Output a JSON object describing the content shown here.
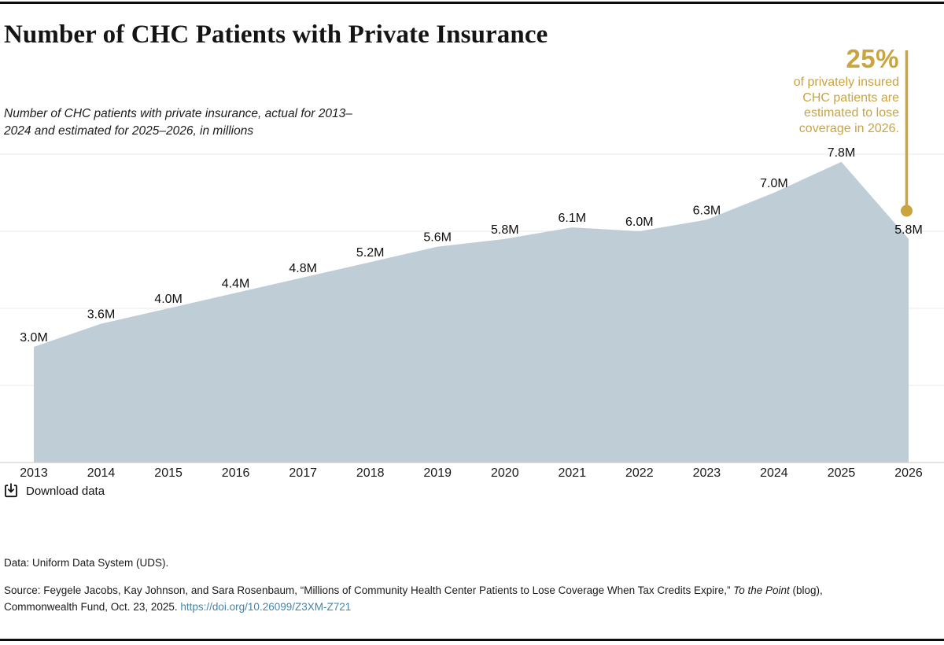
{
  "page": {
    "title": "Number of CHC Patients with Private Insurance",
    "subtitle": "Number of CHC patients with private insurance, actual for 2013–2024 and estimated for 2025–2026, in millions"
  },
  "annotation": {
    "headline": "25%",
    "body": "of privately insured CHC patients are estimated to lose coverage in 2026.",
    "color": "#c9a43f"
  },
  "chart_data": {
    "type": "area",
    "title": "Number of CHC Patients with Private Insurance",
    "xlabel": "",
    "ylabel": "",
    "x": [
      2013,
      2014,
      2015,
      2016,
      2017,
      2018,
      2019,
      2020,
      2021,
      2022,
      2023,
      2024,
      2025,
      2026
    ],
    "values": [
      3.0,
      3.6,
      4.0,
      4.4,
      4.8,
      5.2,
      5.6,
      5.8,
      6.1,
      6.0,
      6.3,
      7.0,
      7.8,
      5.8
    ],
    "labels": [
      "3.0M",
      "3.6M",
      "4.0M",
      "4.4M",
      "4.8M",
      "5.2M",
      "5.6M",
      "5.8M",
      "6.1M",
      "6.0M",
      "6.3M",
      "7.0M",
      "7.8M",
      "5.8M"
    ],
    "ylim": [
      0,
      8
    ],
    "gridline_values": [
      0,
      2,
      4,
      6,
      8
    ],
    "grid_on": true,
    "legend": "none",
    "area_color": "#bfcdd7",
    "gridline_color": "#e8e8e5",
    "axis_line_color": "#c7c7c4"
  },
  "toolbar": {
    "download_label": "Download data"
  },
  "footer": {
    "data_note": "Data: Uniform Data System (UDS).",
    "source_prefix": "Source: Feygele Jacobs, Kay Johnson, and Sara Rosenbaum, “Millions of Community Health Center Patients to Lose Coverage When Tax Credits Expire,” ",
    "source_publication": "To the Point",
    "source_suffix": " (blog), Commonwealth Fund, Oct. 23, 2025. ",
    "link": "https://doi.org/10.26099/Z3XM-Z721"
  }
}
